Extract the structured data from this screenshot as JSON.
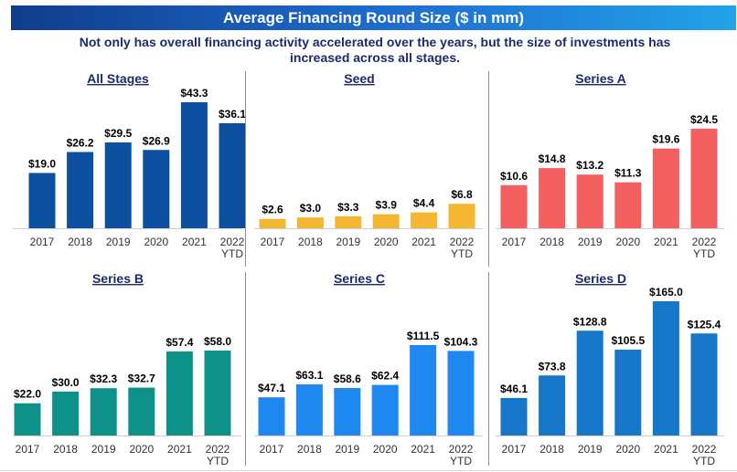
{
  "title": "Average Financing Round Size ($ in mm)",
  "subtitle": "Not only has overall financing activity accelerated over the years, but the size of investments has increased across all stages.",
  "chart_data": [
    {
      "type": "bar",
      "title": "All Stages",
      "categories": [
        "2017",
        "2018",
        "2019",
        "2020",
        "2021",
        "2022 YTD"
      ],
      "values": [
        19.0,
        26.2,
        29.5,
        26.9,
        43.3,
        36.1
      ],
      "value_labels": [
        "$19.0",
        "$26.2",
        "$29.5",
        "$26.9",
        "$43.3",
        "$36.1"
      ],
      "colors": [
        "#0b4f9e",
        "#0b4f9e",
        "#0b4f9e",
        "#0b4f9e",
        "#0b4f9e",
        "#0b4f9e"
      ],
      "ylim": [
        0,
        43.3
      ]
    },
    {
      "type": "bar",
      "title": "Seed",
      "categories": [
        "2017",
        "2018",
        "2019",
        "2020",
        "2021",
        "2022 YTD"
      ],
      "values": [
        2.6,
        3.0,
        3.3,
        3.9,
        4.4,
        6.8
      ],
      "value_labels": [
        "$2.6",
        "$3.0",
        "$3.3",
        "$3.9",
        "$4.4",
        "$6.8"
      ],
      "colors": [
        "#f5b731",
        "#f5b731",
        "#f5b731",
        "#f5b731",
        "#f5b731",
        "#f5b731"
      ],
      "ylim": [
        0,
        35
      ]
    },
    {
      "type": "bar",
      "title": "Series A",
      "categories": [
        "2017",
        "2018",
        "2019",
        "2020",
        "2021",
        "2022 YTD"
      ],
      "values": [
        10.6,
        14.8,
        13.2,
        11.3,
        19.6,
        24.5
      ],
      "value_labels": [
        "$10.6",
        "$14.8",
        "$13.2",
        "$11.3",
        "$19.6",
        "$24.5"
      ],
      "colors": [
        "#f46060",
        "#f46060",
        "#f46060",
        "#f46060",
        "#f46060",
        "#f46060"
      ],
      "ylim": [
        0,
        31
      ]
    },
    {
      "type": "bar",
      "title": "Series B",
      "categories": [
        "2017",
        "2018",
        "2019",
        "2020",
        "2021",
        "2022 YTD"
      ],
      "values": [
        22.0,
        30.0,
        32.3,
        32.7,
        57.4,
        58.0
      ],
      "value_labels": [
        "$22.0",
        "$30.0",
        "$32.3",
        "$32.7",
        "$57.4",
        "$58.0"
      ],
      "colors": [
        "#0e9189",
        "#0e9189",
        "#0e9189",
        "#0e9189",
        "#0e9189",
        "#0e9189"
      ],
      "ylim": [
        0,
        58
      ]
    },
    {
      "type": "bar",
      "title": "Series C",
      "categories": [
        "2017",
        "2018",
        "2019",
        "2020",
        "2021",
        "2022 YTD"
      ],
      "values": [
        47.1,
        63.1,
        58.6,
        62.4,
        111.5,
        104.3
      ],
      "value_labels": [
        "$47.1",
        "$63.1",
        "$58.6",
        "$62.4",
        "$111.5",
        "$104.3"
      ],
      "colors": [
        "#1e88f0",
        "#1e88f0",
        "#1e88f0",
        "#1e88f0",
        "#1e88f0",
        "#1e88f0"
      ],
      "ylim": [
        0,
        111.5
      ]
    },
    {
      "type": "bar",
      "title": "Series D",
      "categories": [
        "2017",
        "2018",
        "2019",
        "2020",
        "2021",
        "2022 YTD"
      ],
      "values": [
        46.1,
        73.8,
        128.8,
        105.5,
        165.0,
        125.4
      ],
      "value_labels": [
        "$46.1",
        "$73.8",
        "$128.8",
        "$105.5",
        "$165.0",
        "$125.4"
      ],
      "colors": [
        "#1676c7",
        "#1676c7",
        "#1676c7",
        "#1676c7",
        "#1676c7",
        "#1676c7"
      ],
      "ylim": [
        0,
        165
      ]
    }
  ]
}
